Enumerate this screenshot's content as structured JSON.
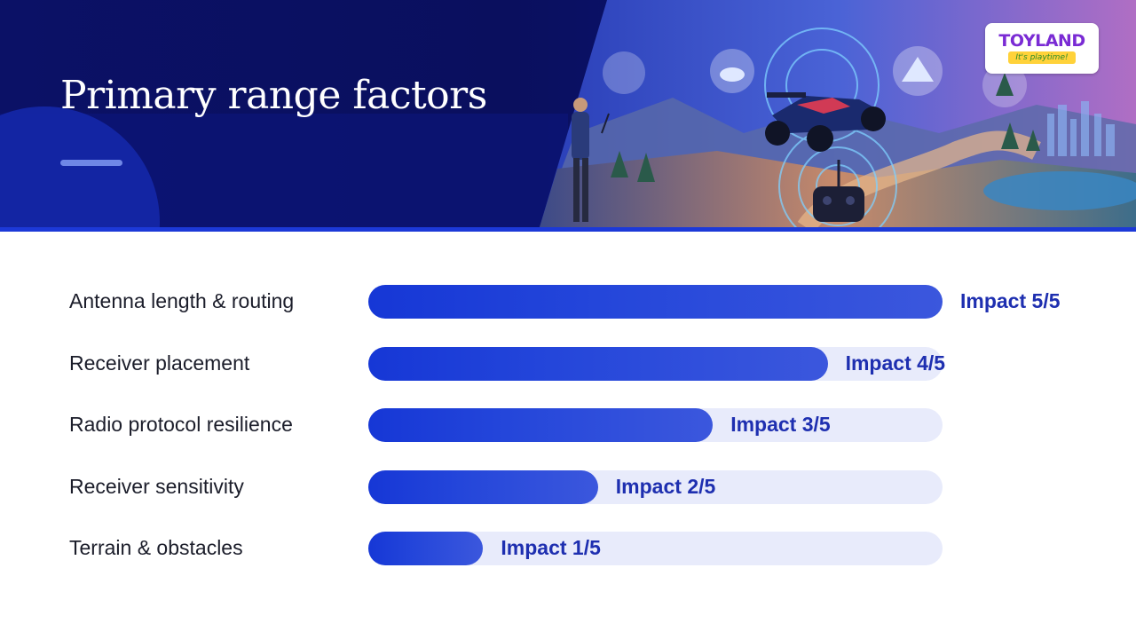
{
  "header": {
    "title": "Primary range factors",
    "logo_word": "TOYLAND",
    "logo_tagline": "It's playtime!"
  },
  "colors": {
    "header_bg": "#0b1166",
    "bar_fill": "#1637d6",
    "bar_track": "#e8ebfb",
    "impact_text": "#1e2fb0"
  },
  "chart_data": {
    "type": "bar",
    "orientation": "horizontal",
    "categories": [
      "Antenna length & routing",
      "Receiver placement",
      "Radio protocol resilience",
      "Receiver sensitivity",
      "Terrain & obstacles"
    ],
    "values": [
      5,
      4,
      3,
      2,
      1
    ],
    "max": 5,
    "value_labels": [
      "Impact 5/5",
      "Impact 4/5",
      "Impact 3/5",
      "Impact 2/5",
      "Impact 1/5"
    ]
  }
}
